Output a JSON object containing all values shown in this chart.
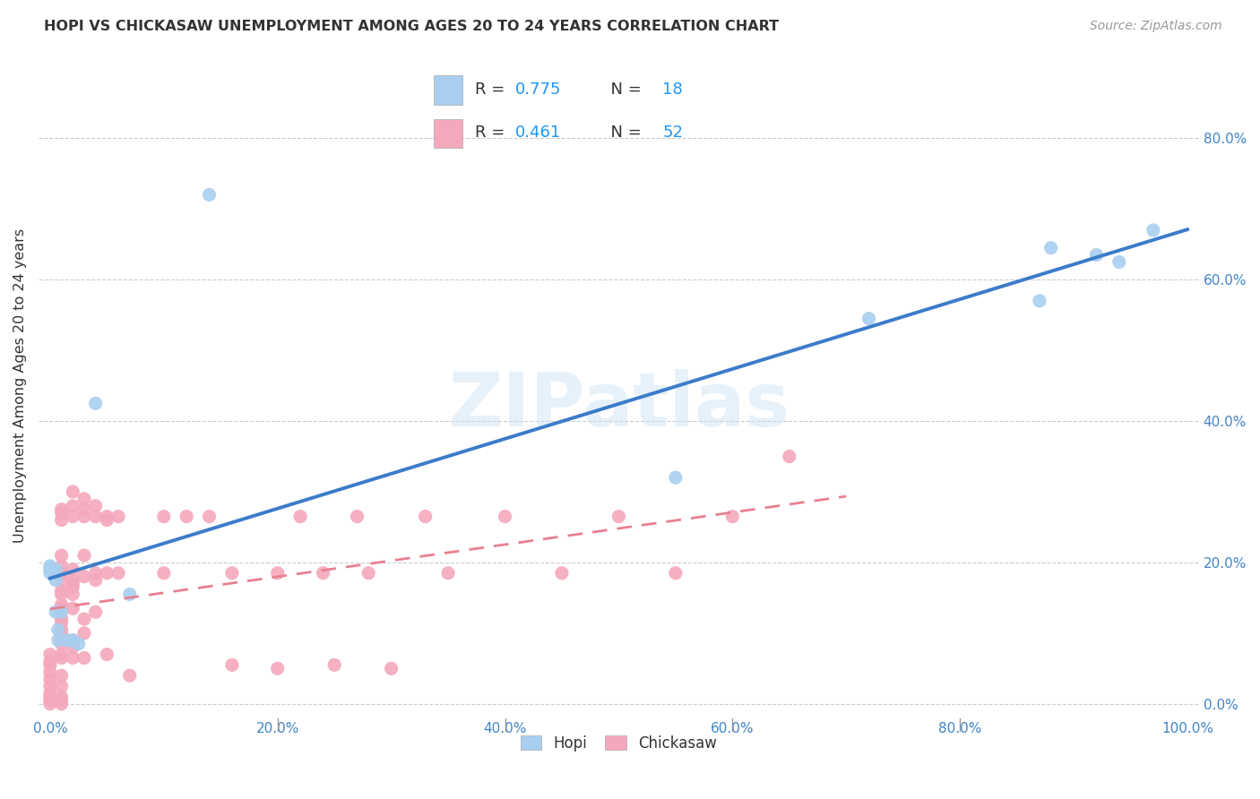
{
  "title": "HOPI VS CHICKASAW UNEMPLOYMENT AMONG AGES 20 TO 24 YEARS CORRELATION CHART",
  "source": "Source: ZipAtlas.com",
  "ylabel": "Unemployment Among Ages 20 to 24 years",
  "xlim": [
    -0.01,
    1.01
  ],
  "ylim": [
    -0.02,
    0.92
  ],
  "xticks": [
    0.0,
    0.2,
    0.4,
    0.6,
    0.8,
    1.0
  ],
  "xtick_labels": [
    "0.0%",
    "20.0%",
    "40.0%",
    "60.0%",
    "80.0%",
    "100.0%"
  ],
  "ytick_labels_right": [
    "0.0%",
    "20.0%",
    "40.0%",
    "60.0%",
    "80.0%"
  ],
  "yticks_right": [
    0.0,
    0.2,
    0.4,
    0.6,
    0.8
  ],
  "hopi_color": "#A8CFF0",
  "chickasaw_color": "#F4A8BC",
  "hopi_line_color": "#3B7CC9",
  "chickasaw_line_color": "#E88090",
  "watermark": "ZIPatlas",
  "hopi_scatter": [
    [
      0.0,
      0.195
    ],
    [
      0.0,
      0.19
    ],
    [
      0.0,
      0.185
    ],
    [
      0.005,
      0.19
    ],
    [
      0.005,
      0.175
    ],
    [
      0.005,
      0.13
    ],
    [
      0.007,
      0.105
    ],
    [
      0.007,
      0.09
    ],
    [
      0.01,
      0.13
    ],
    [
      0.015,
      0.09
    ],
    [
      0.02,
      0.09
    ],
    [
      0.025,
      0.085
    ],
    [
      0.04,
      0.425
    ],
    [
      0.07,
      0.155
    ],
    [
      0.14,
      0.72
    ],
    [
      0.55,
      0.32
    ],
    [
      0.72,
      0.545
    ],
    [
      0.87,
      0.57
    ],
    [
      0.88,
      0.645
    ],
    [
      0.92,
      0.635
    ],
    [
      0.94,
      0.625
    ],
    [
      0.97,
      0.67
    ]
  ],
  "chickasaw_scatter": [
    [
      0.0,
      0.07
    ],
    [
      0.0,
      0.06
    ],
    [
      0.0,
      0.055
    ],
    [
      0.0,
      0.045
    ],
    [
      0.0,
      0.035
    ],
    [
      0.0,
      0.025
    ],
    [
      0.0,
      0.015
    ],
    [
      0.0,
      0.01
    ],
    [
      0.0,
      0.005
    ],
    [
      0.0,
      0.0
    ],
    [
      0.01,
      0.275
    ],
    [
      0.01,
      0.27
    ],
    [
      0.01,
      0.26
    ],
    [
      0.01,
      0.21
    ],
    [
      0.01,
      0.195
    ],
    [
      0.01,
      0.185
    ],
    [
      0.01,
      0.175
    ],
    [
      0.01,
      0.16
    ],
    [
      0.01,
      0.155
    ],
    [
      0.01,
      0.14
    ],
    [
      0.01,
      0.135
    ],
    [
      0.01,
      0.12
    ],
    [
      0.01,
      0.115
    ],
    [
      0.01,
      0.105
    ],
    [
      0.01,
      0.1
    ],
    [
      0.01,
      0.09
    ],
    [
      0.01,
      0.085
    ],
    [
      0.01,
      0.07
    ],
    [
      0.01,
      0.065
    ],
    [
      0.01,
      0.04
    ],
    [
      0.01,
      0.025
    ],
    [
      0.01,
      0.01
    ],
    [
      0.01,
      0.005
    ],
    [
      0.01,
      0.0
    ],
    [
      0.02,
      0.3
    ],
    [
      0.02,
      0.28
    ],
    [
      0.02,
      0.265
    ],
    [
      0.02,
      0.19
    ],
    [
      0.02,
      0.175
    ],
    [
      0.02,
      0.17
    ],
    [
      0.02,
      0.165
    ],
    [
      0.02,
      0.155
    ],
    [
      0.02,
      0.135
    ],
    [
      0.02,
      0.09
    ],
    [
      0.02,
      0.08
    ],
    [
      0.02,
      0.065
    ],
    [
      0.03,
      0.29
    ],
    [
      0.03,
      0.275
    ],
    [
      0.03,
      0.265
    ],
    [
      0.03,
      0.21
    ],
    [
      0.03,
      0.18
    ],
    [
      0.03,
      0.12
    ],
    [
      0.03,
      0.1
    ],
    [
      0.03,
      0.065
    ],
    [
      0.04,
      0.28
    ],
    [
      0.04,
      0.265
    ],
    [
      0.04,
      0.185
    ],
    [
      0.04,
      0.175
    ],
    [
      0.04,
      0.13
    ],
    [
      0.05,
      0.265
    ],
    [
      0.05,
      0.26
    ],
    [
      0.05,
      0.185
    ],
    [
      0.05,
      0.07
    ],
    [
      0.06,
      0.265
    ],
    [
      0.06,
      0.185
    ],
    [
      0.07,
      0.04
    ],
    [
      0.1,
      0.265
    ],
    [
      0.1,
      0.185
    ],
    [
      0.12,
      0.265
    ],
    [
      0.14,
      0.265
    ],
    [
      0.16,
      0.185
    ],
    [
      0.16,
      0.055
    ],
    [
      0.2,
      0.185
    ],
    [
      0.2,
      0.05
    ],
    [
      0.22,
      0.265
    ],
    [
      0.24,
      0.185
    ],
    [
      0.25,
      0.055
    ],
    [
      0.27,
      0.265
    ],
    [
      0.28,
      0.185
    ],
    [
      0.3,
      0.05
    ],
    [
      0.33,
      0.265
    ],
    [
      0.35,
      0.185
    ],
    [
      0.4,
      0.265
    ],
    [
      0.45,
      0.185
    ],
    [
      0.5,
      0.265
    ],
    [
      0.55,
      0.185
    ],
    [
      0.6,
      0.265
    ],
    [
      0.65,
      0.35
    ]
  ]
}
